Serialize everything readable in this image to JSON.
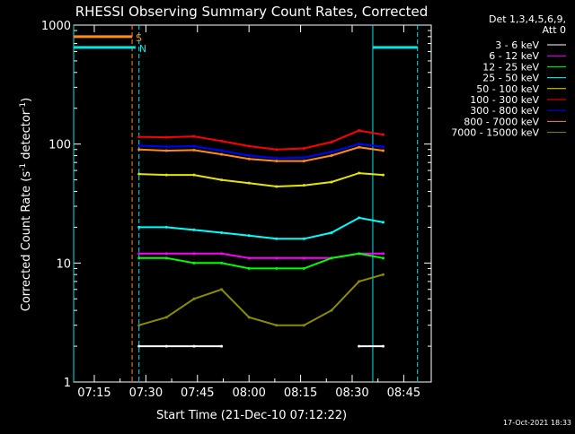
{
  "chart_data": {
    "type": "line",
    "title": "RHESSI Observing Summary Count Rates, Corrected",
    "xlabel": "Start Time (21-Dec-10 07:12:22)",
    "ylabel_main": "Corrected Count Rate (s",
    "ylabel_sup1": "-1",
    "ylabel_mid": " detector",
    "ylabel_sup2": "-1",
    "ylabel_end": ")",
    "yscale": "log",
    "ylim": [
      1,
      1000
    ],
    "xlim": [
      "07:09",
      "08:53"
    ],
    "x_ticks": [
      "07:15",
      "07:30",
      "07:45",
      "08:00",
      "08:15",
      "08:30",
      "08:45"
    ],
    "y_ticks": [
      "1",
      "10",
      "100",
      "1000"
    ],
    "legend_header": [
      "Det 1,3,4,5,6,9,",
      "Att 0"
    ],
    "legend_position": "right",
    "footer_date": "17-Oct-2021 18:33",
    "colors": {
      "background": "#000000",
      "axes": "#ffffff",
      "flag_bar": "#00e5e5",
      "saa_bar": "#ff8c1a"
    },
    "flags": [
      {
        "label": "S",
        "color": "#ff8c1a",
        "value": 800,
        "x_start": "07:09",
        "x_end": "07:26"
      },
      {
        "label": "N",
        "color": "#00e5e5",
        "value": 650,
        "x_start": "07:09",
        "x_end": "07:27"
      },
      {
        "label": "",
        "color": "#00e5e5",
        "value": 650,
        "x_start": "08:36",
        "x_end": "08:49"
      }
    ],
    "markers": [
      {
        "time": "07:09",
        "color": "#00e5e5",
        "style": "solid"
      },
      {
        "time": "07:26",
        "color": "#ff8c1a",
        "style": "dashed"
      },
      {
        "time": "07:28",
        "color": "#00e5e5",
        "style": "dashed"
      },
      {
        "time": "08:36",
        "color": "#00e5e5",
        "style": "solid"
      },
      {
        "time": "08:49",
        "color": "#00e5e5",
        "style": "dashed"
      }
    ],
    "x": [
      "07:28",
      "07:36",
      "07:44",
      "07:52",
      "08:00",
      "08:08",
      "08:16",
      "08:24",
      "08:32",
      "08:39"
    ],
    "series": [
      {
        "name": "3 - 6 keV",
        "color": "#ffffff",
        "values": [
          2,
          2,
          2,
          2,
          null,
          null,
          null,
          null,
          2,
          2
        ]
      },
      {
        "name": "6 - 12 keV",
        "color": "#ff00ff",
        "values": [
          12,
          12,
          12,
          12,
          11,
          11,
          11,
          11,
          12,
          12
        ]
      },
      {
        "name": "12 - 25 keV",
        "color": "#00ff00",
        "values": [
          11,
          11,
          10,
          10,
          9,
          9,
          9,
          11,
          12,
          11
        ]
      },
      {
        "name": "25 - 50 keV",
        "color": "#00ffff",
        "values": [
          20,
          20,
          19,
          18,
          17,
          16,
          16,
          18,
          24,
          22
        ]
      },
      {
        "name": "50 - 100 keV",
        "color": "#e5e500",
        "values": [
          56,
          55,
          55,
          50,
          47,
          44,
          45,
          48,
          57,
          55
        ]
      },
      {
        "name": "100 - 300 keV",
        "color": "#ff0000",
        "values": [
          115,
          114,
          116,
          106,
          96,
          90,
          92,
          104,
          130,
          120
        ]
      },
      {
        "name": "300 - 800 keV",
        "color": "#0000ff",
        "values": [
          97,
          95,
          96,
          88,
          80,
          76,
          77,
          86,
          100,
          95
        ]
      },
      {
        "name": "800 - 7000 keV",
        "color": "#ff8c1a",
        "values": [
          90,
          88,
          89,
          82,
          75,
          72,
          72,
          80,
          94,
          88
        ]
      },
      {
        "name": "7000 - 15000 keV",
        "color": "#8b8b00",
        "values": [
          3,
          3.5,
          5,
          6,
          3.5,
          3,
          3,
          4,
          7,
          8
        ]
      }
    ]
  }
}
